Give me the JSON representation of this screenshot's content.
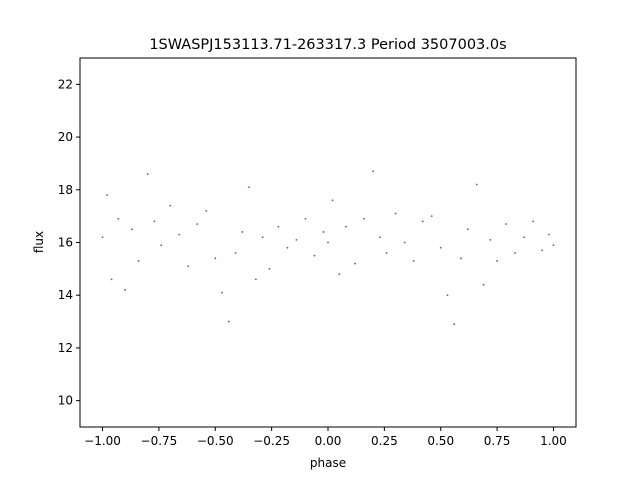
{
  "chart_data": {
    "type": "scatter",
    "title": "1SWASPJ153113.71-263317.3 Period 3507003.0s",
    "xlabel": "phase",
    "ylabel": "flux",
    "xlim": [
      -1.1,
      1.1
    ],
    "ylim": [
      9.0,
      23.0
    ],
    "xticks": [
      -1.0,
      -0.75,
      -0.5,
      -0.25,
      0.0,
      0.25,
      0.5,
      0.75,
      1.0
    ],
    "xtick_labels": [
      "−1.00",
      "−0.75",
      "−0.50",
      "−0.25",
      "0.00",
      "0.25",
      "0.50",
      "0.75",
      "1.00"
    ],
    "yticks": [
      10,
      12,
      14,
      16,
      18,
      20,
      22
    ],
    "ytick_labels": [
      "10",
      "12",
      "14",
      "16",
      "18",
      "20",
      "22"
    ],
    "grid": false,
    "legend": "none",
    "marker_color": "#1f77b4",
    "series": [
      {
        "points": [
          [
            -1.0,
            16.2
          ],
          [
            -0.98,
            17.8
          ],
          [
            -0.96,
            14.6
          ],
          [
            -0.93,
            16.9
          ],
          [
            -0.9,
            14.2
          ],
          [
            -0.87,
            16.5
          ],
          [
            -0.84,
            15.3
          ],
          [
            -0.8,
            18.6
          ],
          [
            -0.77,
            16.8
          ],
          [
            -0.74,
            15.9
          ],
          [
            -0.7,
            17.4
          ],
          [
            -0.66,
            16.3
          ],
          [
            -0.62,
            15.1
          ],
          [
            -0.58,
            16.7
          ],
          [
            -0.54,
            17.2
          ],
          [
            -0.5,
            15.4
          ],
          [
            -0.47,
            14.1
          ],
          [
            -0.44,
            13.0
          ],
          [
            -0.41,
            15.6
          ],
          [
            -0.38,
            16.4
          ],
          [
            -0.35,
            18.1
          ],
          [
            -0.32,
            14.6
          ],
          [
            -0.29,
            16.2
          ],
          [
            -0.26,
            15.0
          ],
          [
            -0.22,
            16.6
          ],
          [
            -0.18,
            15.8
          ],
          [
            -0.14,
            16.1
          ],
          [
            -0.1,
            16.9
          ],
          [
            -0.06,
            15.5
          ],
          [
            -0.02,
            16.4
          ],
          [
            0.0,
            16.0
          ],
          [
            0.02,
            17.6
          ],
          [
            0.05,
            14.8
          ],
          [
            0.08,
            16.6
          ],
          [
            0.12,
            15.2
          ],
          [
            0.16,
            16.9
          ],
          [
            0.2,
            18.7
          ],
          [
            0.23,
            16.2
          ],
          [
            0.26,
            15.6
          ],
          [
            0.3,
            17.1
          ],
          [
            0.34,
            16.0
          ],
          [
            0.38,
            15.3
          ],
          [
            0.42,
            16.8
          ],
          [
            0.46,
            17.0
          ],
          [
            0.5,
            15.8
          ],
          [
            0.53,
            14.0
          ],
          [
            0.56,
            12.9
          ],
          [
            0.59,
            15.4
          ],
          [
            0.62,
            16.5
          ],
          [
            0.66,
            18.2
          ],
          [
            0.69,
            14.4
          ],
          [
            0.72,
            16.1
          ],
          [
            0.75,
            15.3
          ],
          [
            0.79,
            16.7
          ],
          [
            0.83,
            15.6
          ],
          [
            0.87,
            16.2
          ],
          [
            0.91,
            16.8
          ],
          [
            0.95,
            15.7
          ],
          [
            0.98,
            16.3
          ],
          [
            1.0,
            15.9
          ]
        ]
      }
    ]
  }
}
